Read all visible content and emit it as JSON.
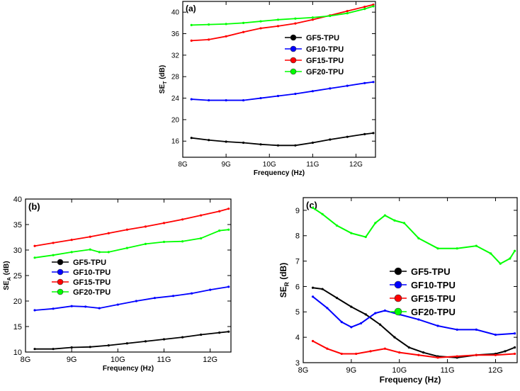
{
  "chart_data": [
    {
      "panel": "(a)",
      "type": "line",
      "xlabel": "Frequency (Hz)",
      "ylabel_main": "SE",
      "ylabel_sub": "T",
      "ylabel_unit": " (dB)",
      "xlim": [
        8.0,
        12.45
      ],
      "ylim": [
        13.0,
        42.0
      ],
      "xticks": [
        8,
        9,
        10,
        11,
        12
      ],
      "xtick_labels": [
        "8G",
        "9G",
        "10G",
        "11G",
        "12G"
      ],
      "yticks": [
        16,
        20,
        24,
        28,
        32,
        36,
        40
      ],
      "ytick_labels": [
        "16",
        "20",
        "24",
        "28",
        "32",
        "36",
        "40"
      ],
      "series": [
        {
          "name": "GF5-TPU",
          "color": "#000000",
          "x": [
            8.2,
            8.6,
            9.0,
            9.4,
            9.8,
            10.2,
            10.6,
            11.0,
            11.4,
            11.8,
            12.2,
            12.4
          ],
          "y": [
            16.6,
            16.2,
            15.9,
            15.7,
            15.4,
            15.2,
            15.2,
            15.7,
            16.3,
            16.8,
            17.3,
            17.5
          ]
        },
        {
          "name": "GF10-TPU",
          "color": "#0000ff",
          "x": [
            8.2,
            8.6,
            9.0,
            9.4,
            9.8,
            10.2,
            10.6,
            11.0,
            11.4,
            11.8,
            12.2,
            12.4
          ],
          "y": [
            23.8,
            23.6,
            23.6,
            23.6,
            24.0,
            24.4,
            24.8,
            25.3,
            25.8,
            26.3,
            26.8,
            27.0
          ]
        },
        {
          "name": "GF15-TPU",
          "color": "#ff0000",
          "x": [
            8.2,
            8.6,
            9.0,
            9.4,
            9.8,
            10.2,
            10.6,
            11.0,
            11.4,
            11.8,
            12.2,
            12.4
          ],
          "y": [
            34.7,
            34.9,
            35.5,
            36.3,
            37.0,
            37.4,
            37.9,
            38.6,
            39.4,
            40.2,
            41.0,
            41.4
          ]
        },
        {
          "name": "GF20-TPU",
          "color": "#00ff00",
          "x": [
            8.2,
            8.6,
            9.0,
            9.4,
            9.8,
            10.2,
            10.6,
            11.0,
            11.4,
            11.8,
            12.2,
            12.4
          ],
          "y": [
            37.6,
            37.7,
            37.8,
            38.0,
            38.3,
            38.6,
            38.8,
            39.0,
            39.3,
            39.8,
            40.6,
            41.1
          ]
        }
      ],
      "legend_position": "center-right"
    },
    {
      "panel": "(b)",
      "type": "line",
      "xlabel": "Frequency (Hz)",
      "ylabel_main": "SE",
      "ylabel_sub": "A",
      "ylabel_unit": " (dB)",
      "xlim": [
        8.0,
        12.45
      ],
      "ylim": [
        10.0,
        40.0
      ],
      "xticks": [
        8,
        9,
        10,
        11,
        12
      ],
      "xtick_labels": [
        "8G",
        "9G",
        "10G",
        "11G",
        "12G"
      ],
      "yticks": [
        10,
        15,
        20,
        25,
        30,
        35,
        40
      ],
      "ytick_labels": [
        "10",
        "15",
        "20",
        "25",
        "30",
        "35",
        "40"
      ],
      "series": [
        {
          "name": "GF5-TPU",
          "color": "#000000",
          "x": [
            8.2,
            8.6,
            9.0,
            9.4,
            9.8,
            10.2,
            10.6,
            11.0,
            11.4,
            11.8,
            12.2,
            12.4
          ],
          "y": [
            10.6,
            10.6,
            10.9,
            11.0,
            11.3,
            11.7,
            12.1,
            12.5,
            12.9,
            13.4,
            13.8,
            14.0
          ]
        },
        {
          "name": "GF10-TPU",
          "color": "#0000ff",
          "x": [
            8.2,
            8.6,
            9.0,
            9.3,
            9.6,
            10.0,
            10.4,
            10.8,
            11.2,
            11.6,
            12.0,
            12.4
          ],
          "y": [
            18.2,
            18.5,
            19.0,
            18.9,
            18.6,
            19.3,
            20.0,
            20.6,
            21.0,
            21.5,
            22.2,
            22.8
          ]
        },
        {
          "name": "GF15-TPU",
          "color": "#ff0000",
          "x": [
            8.2,
            8.6,
            9.0,
            9.4,
            9.8,
            10.2,
            10.6,
            11.0,
            11.4,
            11.8,
            12.2,
            12.4
          ],
          "y": [
            30.8,
            31.4,
            32.0,
            32.6,
            33.3,
            34.0,
            34.6,
            35.3,
            36.0,
            36.8,
            37.6,
            38.1
          ]
        },
        {
          "name": "GF20-TPU",
          "color": "#00ff00",
          "x": [
            8.2,
            8.6,
            9.0,
            9.4,
            9.6,
            9.8,
            10.2,
            10.6,
            11.0,
            11.4,
            11.8,
            12.2,
            12.4
          ],
          "y": [
            28.5,
            29.0,
            29.6,
            30.1,
            29.6,
            29.6,
            30.4,
            31.2,
            31.6,
            31.7,
            32.3,
            33.8,
            34.0
          ]
        }
      ],
      "legend_position": "bottom-left"
    },
    {
      "panel": "(c)",
      "type": "line",
      "xlabel": "Frequency (Hz)",
      "ylabel_main": "SE",
      "ylabel_sub": "R",
      "ylabel_unit": " (dB)",
      "xlim": [
        8.0,
        12.45
      ],
      "ylim": [
        3.0,
        9.5
      ],
      "xticks": [
        8,
        9,
        10,
        11,
        12
      ],
      "xtick_labels": [
        "8G",
        "9G",
        "10G",
        "11G",
        "12G"
      ],
      "yticks": [
        3,
        4,
        5,
        6,
        7,
        8,
        9
      ],
      "ytick_labels": [
        "3",
        "4",
        "5",
        "6",
        "7",
        "8",
        "9"
      ],
      "series": [
        {
          "name": "GF5-TPU",
          "color": "#000000",
          "x": [
            8.2,
            8.4,
            8.7,
            9.0,
            9.3,
            9.6,
            9.9,
            10.2,
            10.5,
            10.8,
            11.2,
            11.6,
            12.0,
            12.2,
            12.4
          ],
          "y": [
            5.95,
            5.9,
            5.55,
            5.2,
            4.9,
            4.5,
            4.0,
            3.6,
            3.4,
            3.25,
            3.2,
            3.3,
            3.35,
            3.45,
            3.6
          ]
        },
        {
          "name": "GF10-TPU",
          "color": "#0000ff",
          "x": [
            8.2,
            8.5,
            8.8,
            9.0,
            9.2,
            9.5,
            9.7,
            10.0,
            10.4,
            10.8,
            11.2,
            11.6,
            12.0,
            12.4
          ],
          "y": [
            5.6,
            5.15,
            4.6,
            4.4,
            4.55,
            4.95,
            5.05,
            4.9,
            4.7,
            4.45,
            4.3,
            4.3,
            4.1,
            4.15
          ]
        },
        {
          "name": "GF15-TPU",
          "color": "#ff0000",
          "x": [
            8.2,
            8.5,
            8.8,
            9.1,
            9.4,
            9.7,
            10.0,
            10.4,
            10.8,
            11.2,
            11.6,
            12.0,
            12.4
          ],
          "y": [
            3.85,
            3.55,
            3.35,
            3.35,
            3.45,
            3.55,
            3.4,
            3.3,
            3.2,
            3.25,
            3.3,
            3.3,
            3.35
          ]
        },
        {
          "name": "GF20-TPU",
          "color": "#00ff00",
          "x": [
            8.2,
            8.4,
            8.7,
            9.0,
            9.3,
            9.5,
            9.7,
            9.9,
            10.1,
            10.4,
            10.8,
            11.2,
            11.6,
            11.9,
            12.1,
            12.3,
            12.4
          ],
          "y": [
            9.1,
            8.85,
            8.4,
            8.1,
            7.95,
            8.5,
            8.8,
            8.6,
            8.5,
            7.9,
            7.5,
            7.5,
            7.6,
            7.3,
            6.9,
            7.1,
            7.4
          ]
        }
      ],
      "legend_position": "center-right"
    }
  ]
}
